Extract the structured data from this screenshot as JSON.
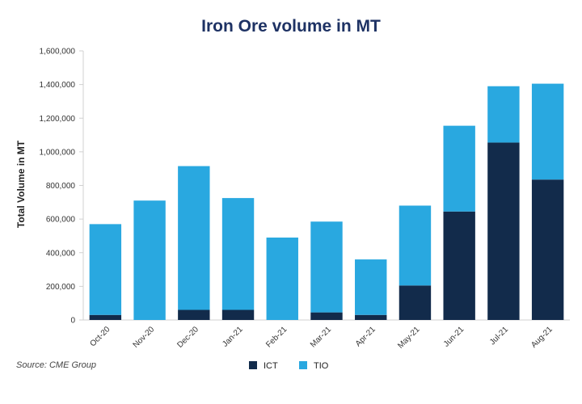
{
  "chart_data": {
    "type": "bar",
    "stacked": true,
    "title": "Iron Ore volume in MT",
    "xlabel": "",
    "ylabel": "Total Volume in MT",
    "ylim": [
      0,
      1600000
    ],
    "yticks": [
      "0",
      "200,000",
      "400,000",
      "600,000",
      "800,000",
      "1,000,000",
      "1,200,000",
      "1,400,000",
      "1,600,000"
    ],
    "categories": [
      "Oct-20",
      "Nov-20",
      "Dec-20",
      "Jan-21",
      "Feb-21",
      "Mar-21",
      "Apr-21",
      "May-21",
      "Jun-21",
      "Jul-21",
      "Aug-21"
    ],
    "series": [
      {
        "name": "ICT",
        "color": "#122b4b",
        "values": [
          30000,
          0,
          60000,
          60000,
          0,
          45000,
          30000,
          205000,
          645000,
          1055000,
          835000
        ]
      },
      {
        "name": "TIO",
        "color": "#29a8e0",
        "values": [
          540000,
          710000,
          855000,
          665000,
          490000,
          540000,
          330000,
          475000,
          510000,
          335000,
          570000
        ]
      }
    ],
    "legend_position": "bottom-center",
    "grid": false,
    "source": "Source: CME Group",
    "title_color": "#1e3264"
  }
}
